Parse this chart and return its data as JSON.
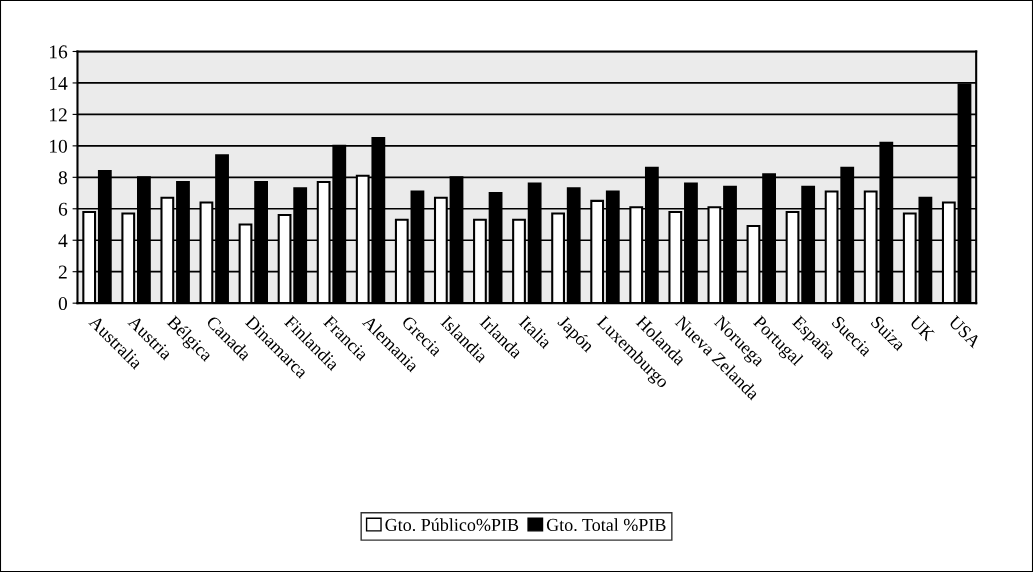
{
  "chart_data": {
    "type": "bar",
    "categories": [
      "Australia",
      "Austria",
      "Bélgica",
      "Canada",
      "Dinamarca",
      "Finlandia",
      "Francia",
      "Alemania",
      "Grecia",
      "Islandia",
      "Irlanda",
      "Italia",
      "Japón",
      "Luxemburgo",
      "Holanda",
      "Nueva Zelanda",
      "Noruega",
      "Portugal",
      "España",
      "Suecia",
      "Suiza",
      "UK",
      "USA"
    ],
    "series": [
      {
        "name": "Gto. Público%PIB",
        "color": "#ffffff",
        "values": [
          5.8,
          5.7,
          6.7,
          6.4,
          5.0,
          5.6,
          7.7,
          8.1,
          5.3,
          6.7,
          5.3,
          5.3,
          5.7,
          6.5,
          6.1,
          5.8,
          6.1,
          4.9,
          5.8,
          7.1,
          7.1,
          5.7,
          6.4
        ]
      },
      {
        "name": "Gto. Total %PIB",
        "color": "#000000",
        "values": [
          8.4,
          8.0,
          7.7,
          9.4,
          7.7,
          7.3,
          10.0,
          10.5,
          7.1,
          8.0,
          7.0,
          7.6,
          7.3,
          7.1,
          8.6,
          7.6,
          7.4,
          8.2,
          7.4,
          8.6,
          10.2,
          6.7,
          13.9
        ]
      }
    ],
    "ylim": [
      0,
      16
    ],
    "yticks": [
      0,
      2,
      4,
      6,
      8,
      10,
      12,
      14,
      16
    ],
    "grid": "y",
    "legend": "bottom"
  }
}
